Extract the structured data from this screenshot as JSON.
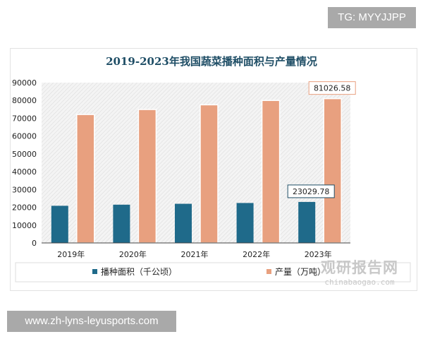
{
  "overlay": {
    "tag": "TG: MYYJJPP",
    "url": "www.zh-lyns-leyusports.com"
  },
  "watermark": {
    "cn": "观研报告网",
    "en": "chinabaogao.com"
  },
  "colors": {
    "area": "#1f6a8a",
    "production": "#e8a07f",
    "title": "#1f4e66"
  },
  "chart_data": {
    "type": "bar",
    "title": "2019-2023年我国蔬菜播种面积与产量情况",
    "categories": [
      "2019年",
      "2020年",
      "2021年",
      "2022年",
      "2023年"
    ],
    "series": [
      {
        "name": "播种面积（千公顷）",
        "values": [
          20863,
          21486,
          21986,
          22434,
          23029.78
        ]
      },
      {
        "name": "产量（万吨）",
        "values": [
          72103,
          74913,
          77549,
          79997,
          81026.58
        ]
      }
    ],
    "data_labels": [
      {
        "series": 0,
        "index": 4,
        "text": "23029.78"
      },
      {
        "series": 1,
        "index": 4,
        "text": "81026.58"
      }
    ],
    "yticks": [
      "0",
      "10000",
      "20000",
      "30000",
      "40000",
      "50000",
      "60000",
      "70000",
      "80000",
      "90000"
    ],
    "ylim": [
      0,
      90000
    ],
    "grid": false,
    "legend": "bottom"
  }
}
